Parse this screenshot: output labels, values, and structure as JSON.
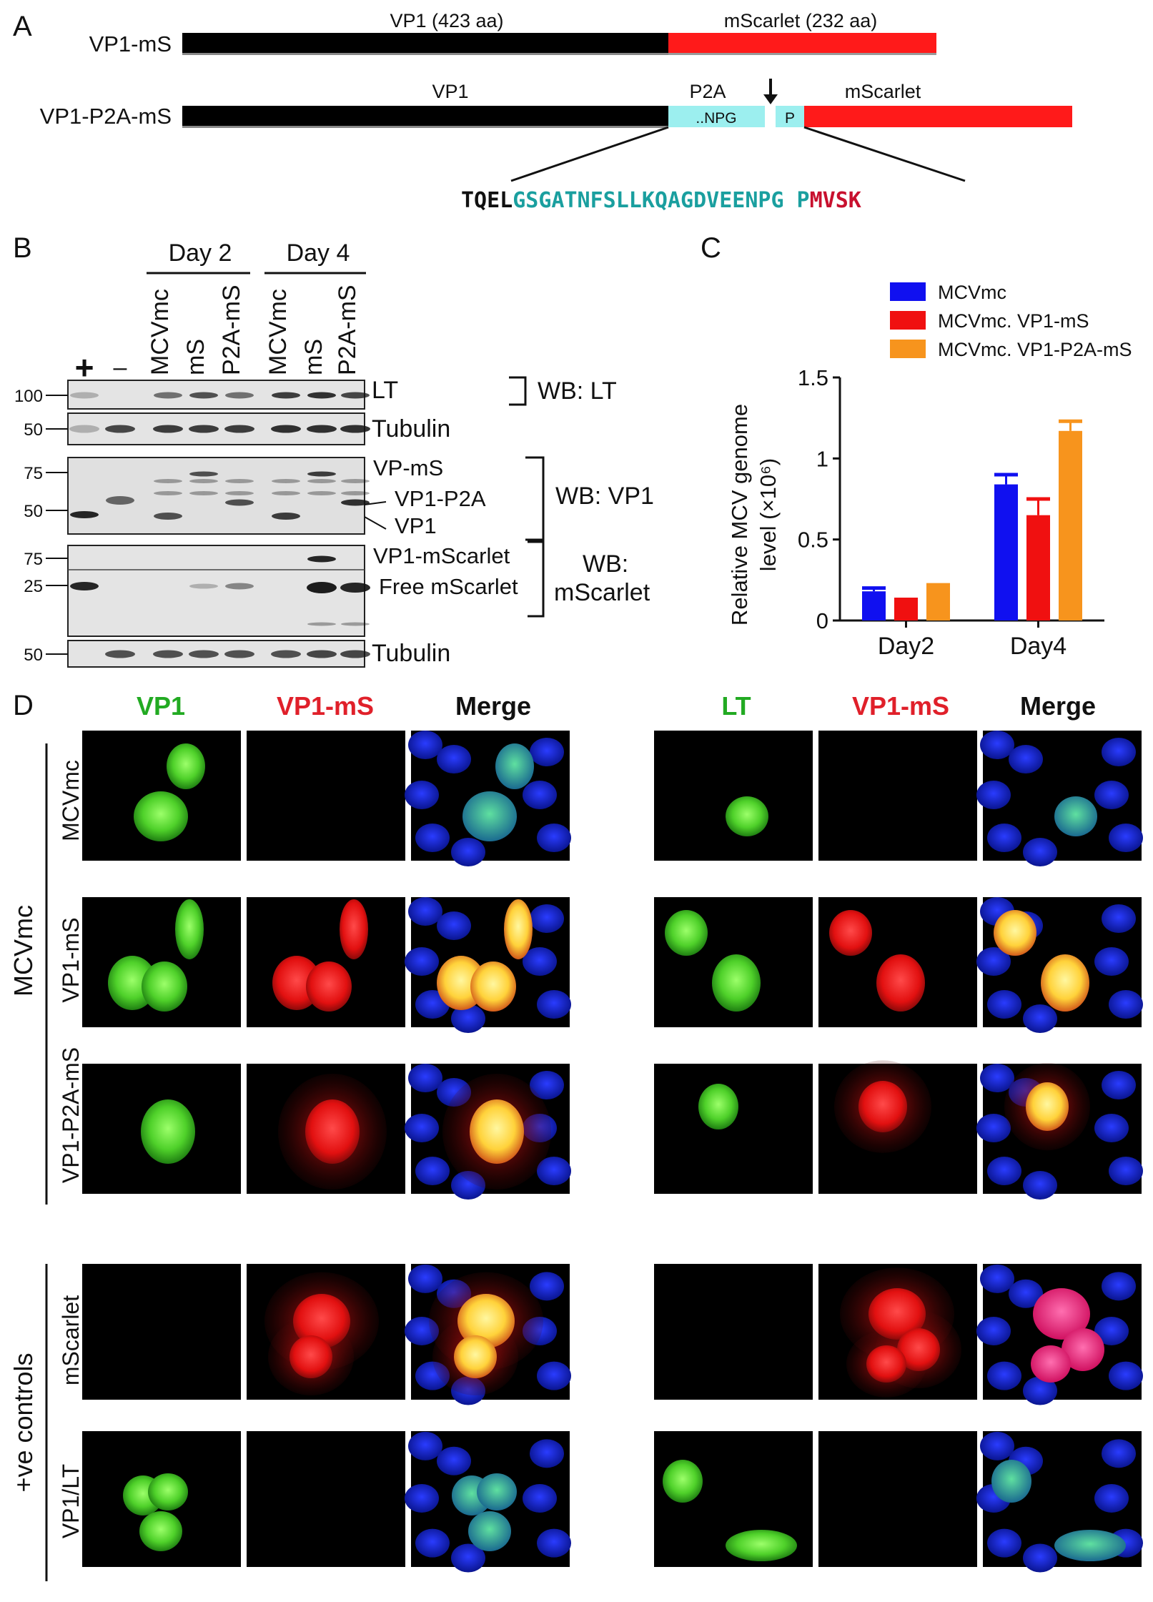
{
  "panel_a": {
    "label": "A",
    "construct1": {
      "name": "VP1-mS",
      "vp1": "VP1 (423 aa)",
      "ms": "mScarlet (232 aa)"
    },
    "construct2": {
      "name": "VP1-P2A-mS",
      "vp1": "VP1",
      "p2a": "P2A",
      "npg": "..NPG",
      "p": "P",
      "ms": "mScarlet"
    },
    "seq": {
      "black": "TQEL",
      "teal": "GSGATNFSLLKQAGDVEENPG",
      "teal2": "P",
      "red": "MVSK"
    },
    "colors": {
      "vp1": "#000000",
      "ms": "#ff1a1a",
      "p2a": "#9cefef",
      "teal": "#1a9f9f",
      "red": "#c8102e"
    }
  },
  "panel_b": {
    "label": "B",
    "days": [
      "Day 2",
      "Day 4"
    ],
    "lanes": [
      "+",
      "–",
      "MCVmc",
      "mS",
      "P2A-mS",
      "MCVmc",
      "mS",
      "P2A-mS"
    ],
    "mw": {
      "lt": "100",
      "tub1": "50",
      "vp_75": "75",
      "vp_50": "50",
      "ms_75": "75",
      "ms_25": "25",
      "tub2": "50"
    },
    "band_labels": {
      "lt": "LT",
      "tub1": "Tubulin",
      "vpms": "VP-mS",
      "vp1p2a": "VP1-P2A",
      "vp1": "VP1",
      "vp1mscarlet": "VP1-mScarlet",
      "free": "Free mScarlet",
      "tub2": "Tubulin"
    },
    "wb": {
      "lt": "WB: LT",
      "vp1": "WB: VP1",
      "ms1": "WB:",
      "ms2": "mScarlet"
    }
  },
  "chart_data": {
    "type": "bar",
    "panel_label": "C",
    "categories": [
      "Day2",
      "Day4"
    ],
    "series": [
      {
        "name": "MCVmc",
        "values": [
          0.18,
          0.84
        ],
        "errors": [
          0.02,
          0.06
        ],
        "color": "#1010f0"
      },
      {
        "name": "MCVmc. VP1-mS",
        "values": [
          0.12,
          0.65
        ],
        "errors": [
          0.01,
          0.1
        ],
        "color": "#f01010"
      },
      {
        "name": "MCVmc. VP1-P2A-mS",
        "values": [
          0.21,
          1.17
        ],
        "errors": [
          0.01,
          0.06
        ],
        "color": "#f7941d"
      }
    ],
    "ylabel_line1": "Relative MCV genome",
    "ylabel_line2": "level (×10⁶)",
    "ylim": [
      0,
      1.5
    ],
    "yticks": [
      "0",
      "0.5",
      "1",
      "1.5"
    ],
    "legend": "top",
    "grid": false
  },
  "panel_d": {
    "label": "D",
    "left_headers": [
      "VP1",
      "VP1-mS",
      "Merge"
    ],
    "right_headers": [
      "LT",
      "VP1-mS",
      "Merge"
    ],
    "header_colors": [
      "#22aa22",
      "#e0202a",
      "#111111"
    ],
    "group_top": "MCVmc",
    "group_bottom": "+ve controls",
    "rows": [
      "MCVmc",
      "VP1-mS",
      "VP1-P2A-mS",
      "mScarlet",
      "VP1/LT"
    ]
  }
}
